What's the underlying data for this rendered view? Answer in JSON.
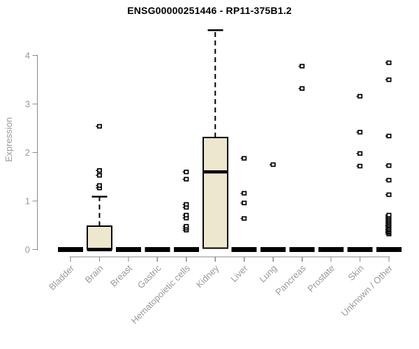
{
  "chart_data": {
    "type": "boxplot",
    "title": "ENSG00000251446 - RP11-375B1.2",
    "xlabel": "",
    "ylabel": "Expression",
    "ylim": [
      0,
      4.6
    ],
    "yticks": [
      0,
      1,
      2,
      3,
      4
    ],
    "y_tick_labels": [
      "0",
      "1",
      "2",
      "3",
      "4"
    ],
    "grid": false,
    "legend_position": "none",
    "categories": [
      "Bladder",
      "Brain",
      "Breast",
      "Gastric",
      "Hematopoietic cells",
      "Kidney",
      "Liver",
      "Lung",
      "Pancreas",
      "Prostate",
      "Skin",
      "Unknown / Other"
    ],
    "series": [
      {
        "category": "Bladder",
        "q1": 0,
        "median": 0,
        "q3": 0,
        "whisker_low": 0,
        "whisker_high": 0,
        "outliers": []
      },
      {
        "category": "Brain",
        "q1": 0,
        "median": 0,
        "q3": 0.48,
        "whisker_low": 0,
        "whisker_high": 1.09,
        "outliers": [
          1.27,
          1.32,
          1.53,
          1.63,
          2.54
        ]
      },
      {
        "category": "Breast",
        "q1": 0,
        "median": 0,
        "q3": 0,
        "whisker_low": 0,
        "whisker_high": 0,
        "outliers": []
      },
      {
        "category": "Gastric",
        "q1": 0,
        "median": 0,
        "q3": 0,
        "whisker_low": 0,
        "whisker_high": 0,
        "outliers": []
      },
      {
        "category": "Hematopoietic cells",
        "q1": 0,
        "median": 0,
        "q3": 0,
        "whisker_low": 0,
        "whisker_high": 0,
        "outliers": [
          0.4,
          0.44,
          0.48,
          0.65,
          0.71,
          0.87,
          0.93,
          1.45,
          1.6
        ]
      },
      {
        "category": "Kidney",
        "q1": 0.03,
        "median": 1.6,
        "q3": 2.31,
        "whisker_low": 0,
        "whisker_high": 4.52,
        "outliers": []
      },
      {
        "category": "Liver",
        "q1": 0,
        "median": 0,
        "q3": 0,
        "whisker_low": 0,
        "whisker_high": 0,
        "outliers": [
          0.64,
          0.96,
          1.16,
          1.88
        ]
      },
      {
        "category": "Lung",
        "q1": 0,
        "median": 0,
        "q3": 0,
        "whisker_low": 0,
        "whisker_high": 0,
        "outliers": [
          1.75
        ]
      },
      {
        "category": "Pancreas",
        "q1": 0,
        "median": 0,
        "q3": 0,
        "whisker_low": 0,
        "whisker_high": 0,
        "outliers": [
          3.32,
          3.78
        ]
      },
      {
        "category": "Prostate",
        "q1": 0,
        "median": 0,
        "q3": 0,
        "whisker_low": 0,
        "whisker_high": 0,
        "outliers": []
      },
      {
        "category": "Skin",
        "q1": 0,
        "median": 0,
        "q3": 0,
        "whisker_low": 0,
        "whisker_high": 0,
        "outliers": [
          1.72,
          1.98,
          2.42,
          3.16
        ]
      },
      {
        "category": "Unknown / Other",
        "q1": 0,
        "median": 0,
        "q3": 0,
        "whisker_low": 0,
        "whisker_high": 0,
        "outliers": [
          0.32,
          0.35,
          0.37,
          0.4,
          0.42,
          0.45,
          0.48,
          0.5,
          0.53,
          0.56,
          0.59,
          0.62,
          0.65,
          0.68,
          0.71,
          1.13,
          1.43,
          1.73,
          2.34,
          3.5,
          3.85
        ]
      }
    ],
    "colors": {
      "box_fill": "#ece7cd",
      "box_line": "#000000",
      "axis_line": "#8a8a8a",
      "tick_label": "#9a9a9a",
      "title": "#000000"
    }
  }
}
